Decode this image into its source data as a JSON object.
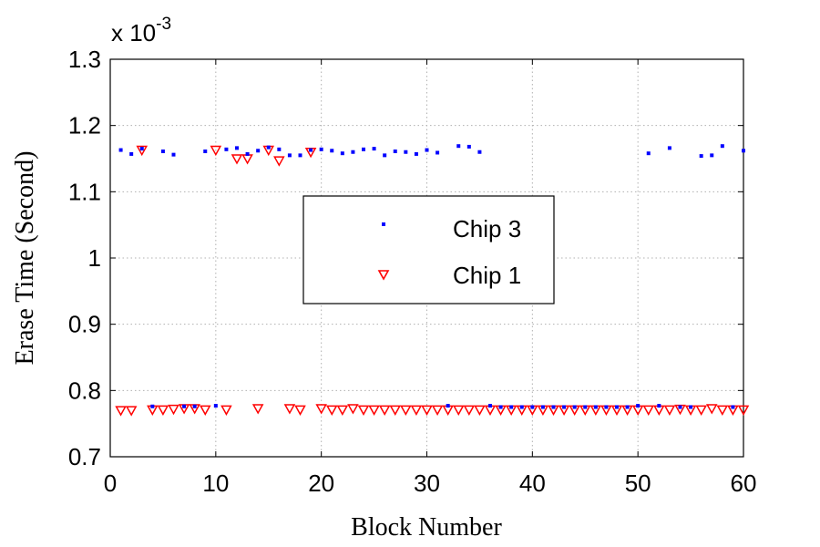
{
  "chart_data": {
    "type": "scatter",
    "title": "",
    "xlabel": "Block Number",
    "ylabel": "Erase Time (Second)",
    "y_multiplier": "x 10",
    "y_exponent": "-3",
    "xlim": [
      0,
      60
    ],
    "ylim": [
      0.7,
      1.3
    ],
    "x_ticks": [
      0,
      10,
      20,
      30,
      40,
      50,
      60
    ],
    "y_ticks": [
      0.7,
      0.8,
      0.9,
      1,
      1.1,
      1.2,
      1.3
    ],
    "x_tick_labels": [
      "0",
      "10",
      "20",
      "30",
      "40",
      "50",
      "60"
    ],
    "y_tick_labels": [
      "0.7",
      "0.8",
      "0.9",
      "1",
      "1.1",
      "1.2",
      "1.3"
    ],
    "grid": true,
    "legend_position": "center",
    "series": [
      {
        "name": "Chip 3",
        "color": "#0000ff",
        "marker": "dot",
        "x": [
          1,
          2,
          3,
          4,
          5,
          6,
          7,
          8,
          9,
          10,
          11,
          12,
          13,
          14,
          15,
          16,
          17,
          18,
          19,
          20,
          21,
          22,
          23,
          24,
          25,
          26,
          27,
          28,
          29,
          30,
          31,
          32,
          33,
          34,
          35,
          36,
          37,
          38,
          39,
          40,
          41,
          42,
          43,
          44,
          45,
          46,
          47,
          48,
          49,
          50,
          51,
          52,
          53,
          54,
          55,
          56,
          57,
          58,
          59,
          60
        ],
        "y": [
          1.163,
          1.157,
          1.165,
          0.776,
          1.161,
          1.156,
          0.776,
          0.776,
          1.161,
          0.777,
          1.164,
          1.166,
          1.157,
          1.162,
          1.167,
          1.164,
          1.155,
          1.155,
          1.163,
          1.164,
          1.162,
          1.158,
          1.16,
          1.164,
          1.165,
          1.155,
          1.161,
          1.16,
          1.157,
          1.163,
          1.159,
          0.777,
          1.169,
          1.168,
          1.16,
          0.777,
          0.775,
          0.775,
          0.775,
          0.775,
          0.775,
          0.775,
          0.775,
          0.775,
          0.775,
          0.775,
          0.775,
          0.775,
          0.775,
          0.777,
          1.158,
          0.777,
          1.166,
          0.775,
          0.775,
          1.154,
          1.155,
          1.169,
          0.775,
          1.162
        ]
      },
      {
        "name": "Chip 1",
        "color": "#ff0000",
        "marker": "triangle-down",
        "x": [
          1,
          2,
          3,
          4,
          5,
          6,
          7,
          8,
          9,
          10,
          11,
          12,
          13,
          14,
          15,
          16,
          17,
          18,
          19,
          20,
          21,
          22,
          23,
          24,
          25,
          26,
          27,
          28,
          29,
          30,
          31,
          32,
          33,
          34,
          35,
          36,
          37,
          38,
          39,
          40,
          41,
          42,
          43,
          44,
          45,
          46,
          47,
          48,
          49,
          50,
          51,
          52,
          53,
          54,
          55,
          56,
          57,
          58,
          59,
          60
        ],
        "y": [
          0.77,
          0.77,
          1.163,
          0.771,
          0.771,
          0.772,
          0.773,
          0.773,
          0.771,
          1.163,
          0.771,
          1.15,
          1.15,
          0.773,
          1.163,
          1.147,
          0.773,
          0.771,
          1.16,
          0.773,
          0.771,
          0.771,
          0.773,
          0.771,
          0.771,
          0.771,
          0.771,
          0.771,
          0.771,
          0.771,
          0.771,
          0.771,
          0.771,
          0.771,
          0.771,
          0.771,
          0.771,
          0.771,
          0.771,
          0.771,
          0.771,
          0.771,
          0.771,
          0.771,
          0.771,
          0.771,
          0.771,
          0.771,
          0.771,
          0.771,
          0.771,
          0.771,
          0.771,
          0.772,
          0.771,
          0.771,
          0.773,
          0.771,
          0.771,
          0.771
        ]
      }
    ]
  }
}
